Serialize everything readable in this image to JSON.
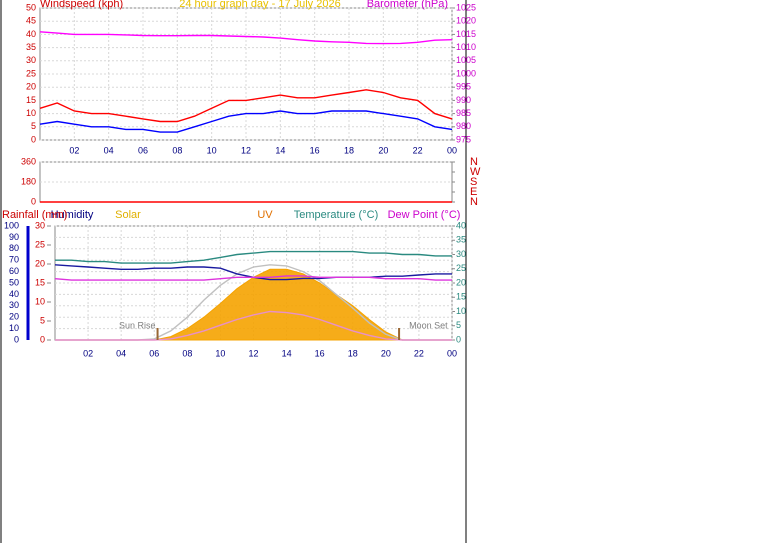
{
  "chart_data": [
    {
      "type": "line",
      "title": "24 hour graph day - 17 July 2026",
      "ylabel": "Windspeed (kph)",
      "y2label": "Barometer (hPa)",
      "x": [
        0,
        1,
        2,
        3,
        4,
        5,
        6,
        7,
        8,
        9,
        10,
        11,
        12,
        13,
        14,
        15,
        16,
        17,
        18,
        19,
        20,
        21,
        22,
        23,
        24
      ],
      "xlim": [
        0,
        24
      ],
      "xticks": [
        {
          "value": 2,
          "label": "02"
        },
        {
          "value": 4,
          "label": "04"
        },
        {
          "value": 6,
          "label": "06"
        },
        {
          "value": 8,
          "label": "08"
        },
        10,
        12,
        14,
        16,
        18,
        20,
        22,
        {
          "value": 24,
          "label": "00"
        }
      ],
      "ylim": [
        0,
        50
      ],
      "yticks": [
        0,
        5,
        10,
        15,
        20,
        25,
        30,
        35,
        40,
        45,
        50
      ],
      "y2lim": [
        975,
        1025
      ],
      "y2ticks": [
        975,
        980,
        985,
        990,
        995,
        1000,
        1005,
        1010,
        1015,
        1020,
        1025
      ],
      "grid": true,
      "series": [
        {
          "color": "#ff0000",
          "values": [
            12,
            14,
            11,
            10,
            10,
            9,
            8,
            7,
            7,
            9,
            12,
            15,
            15,
            16,
            17,
            16,
            16,
            17,
            18,
            19,
            18,
            16,
            15,
            10,
            8
          ]
        },
        {
          "color": "#0000ff",
          "values": [
            6,
            7,
            6,
            5,
            5,
            4,
            4,
            3,
            3,
            5,
            7,
            9,
            10,
            10,
            11,
            10,
            10,
            11,
            11,
            11,
            10,
            9,
            8,
            5,
            4
          ]
        },
        {
          "color": "#ff00ff",
          "axis": "y2",
          "values": [
            1016,
            1015.5,
            1015,
            1015,
            1015,
            1014.8,
            1014.6,
            1014.5,
            1014.5,
            1014.6,
            1014.6,
            1014.4,
            1014.2,
            1014,
            1013.6,
            1013,
            1012.5,
            1012.2,
            1012,
            1011.6,
            1011.5,
            1011.6,
            1012,
            1012.8,
            1013
          ]
        }
      ]
    },
    {
      "type": "line",
      "x": [
        0,
        1,
        2,
        3,
        4,
        5,
        6,
        7,
        8,
        9,
        10,
        11,
        12,
        13,
        14,
        15,
        16,
        17,
        18,
        19,
        20,
        21,
        22,
        23,
        24
      ],
      "xlim": [
        0,
        24
      ],
      "ylim": [
        0,
        360
      ],
      "yticks": [
        0,
        180,
        360
      ],
      "y2lim": [
        0,
        360
      ],
      "y2ticks": [
        {
          "value": 360,
          "label": "N"
        },
        {
          "value": 270,
          "label": "W"
        },
        {
          "value": 180,
          "label": "S"
        },
        {
          "value": 90,
          "label": "E"
        },
        {
          "value": 0,
          "label": "N"
        }
      ],
      "grid": true,
      "series": [
        {
          "color": "#ff0000",
          "values": [
            0,
            0,
            0,
            0,
            0,
            0,
            0,
            0,
            0,
            0,
            0,
            0,
            0,
            0,
            0,
            0,
            0,
            0,
            0,
            0,
            0,
            0,
            0,
            0,
            0
          ]
        }
      ]
    },
    {
      "type": "line",
      "ylabel": "Humidity",
      "y2label": "Temperature (°C)",
      "y3label": "Rainfall (mm)",
      "x": [
        0,
        1,
        2,
        3,
        4,
        5,
        6,
        7,
        8,
        9,
        10,
        11,
        12,
        13,
        14,
        15,
        16,
        17,
        18,
        19,
        20,
        21,
        22,
        23,
        24
      ],
      "xlim": [
        0,
        24
      ],
      "xticks": [
        {
          "value": 2,
          "label": "02"
        },
        {
          "value": 4,
          "label": "04"
        },
        {
          "value": 6,
          "label": "06"
        },
        {
          "value": 8,
          "label": "08"
        },
        10,
        12,
        14,
        16,
        18,
        20,
        22,
        {
          "value": 24,
          "label": "00"
        }
      ],
      "ylim": [
        0,
        100
      ],
      "yticks": [
        0,
        10,
        20,
        30,
        40,
        50,
        60,
        70,
        80,
        90,
        100
      ],
      "y2lim": [
        0,
        40
      ],
      "y2ticks": [
        0,
        5,
        10,
        15,
        20,
        25,
        30,
        35,
        40
      ],
      "y3lim": [
        0,
        30
      ],
      "y3ticks": [
        0,
        5,
        10,
        15,
        20,
        25,
        30
      ],
      "grid": true,
      "annotations": [
        {
          "label": "Sun Rise",
          "x": 6.2
        },
        {
          "label": "Moon Set",
          "x": 20.8
        }
      ],
      "series": [
        {
          "name": "Solar",
          "color": "#f5a300",
          "fill": true,
          "values": [
            0,
            0,
            0,
            0,
            0,
            0,
            0,
            3,
            10,
            20,
            32,
            45,
            55,
            62,
            62,
            58,
            50,
            40,
            30,
            18,
            7,
            0,
            0,
            0,
            0
          ]
        },
        {
          "color": "#c0c0c0",
          "values": [
            0,
            0,
            0,
            0,
            0,
            0,
            1,
            8,
            20,
            35,
            48,
            58,
            64,
            66,
            65,
            60,
            52,
            40,
            28,
            15,
            5,
            0,
            0,
            0,
            0
          ]
        },
        {
          "name": "UV",
          "color": "#e890c8",
          "values": [
            0,
            0,
            0,
            0,
            0,
            0,
            0,
            1,
            4,
            8,
            13,
            18,
            22,
            25,
            24,
            22,
            18,
            13,
            8,
            4,
            1,
            0,
            0,
            0,
            0
          ]
        },
        {
          "name": "Humidity",
          "color": "#1a1aa0",
          "values": [
            66,
            65,
            64,
            63,
            62,
            62,
            63,
            63,
            64,
            64,
            63,
            58,
            55,
            53,
            53,
            54,
            54,
            55,
            55,
            55,
            56,
            56,
            57,
            58,
            58
          ]
        },
        {
          "name": "Temperature (°C)",
          "color": "#2a8a80",
          "axis": "y2",
          "values": [
            28,
            28,
            27.5,
            27.5,
            27,
            27,
            27,
            27,
            27.5,
            28,
            29,
            30,
            30.5,
            31,
            31,
            31,
            31,
            31,
            31,
            30.5,
            30.5,
            30,
            30,
            29.5,
            29.5
          ]
        },
        {
          "name": "Dew Point (°C)",
          "color": "#dd33dd",
          "axis": "y2",
          "values": [
            21.5,
            21,
            21,
            21,
            21,
            21,
            21,
            21,
            21,
            21,
            21.5,
            22,
            22,
            22,
            22.5,
            22.5,
            22,
            22,
            22,
            22,
            21.5,
            21.5,
            21.5,
            21,
            21
          ]
        }
      ]
    }
  ]
}
